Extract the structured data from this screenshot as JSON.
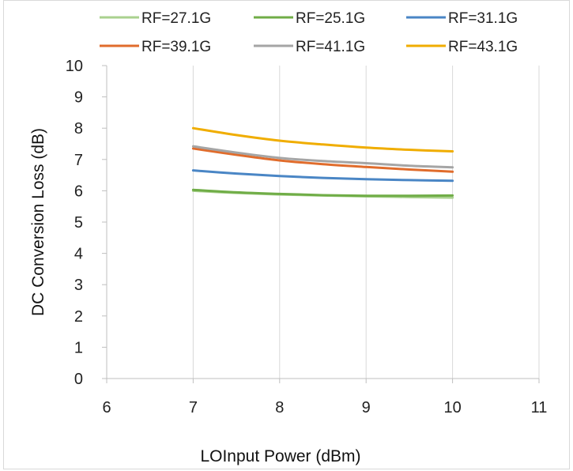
{
  "chart_data": {
    "type": "line",
    "title": "",
    "xlabel": "LOInput Power (dBm)",
    "ylabel": "DC Conversion Loss (dB)",
    "xlim": [
      6,
      11
    ],
    "ylim": [
      0,
      10
    ],
    "xticks": [
      6,
      7,
      8,
      9,
      10,
      11
    ],
    "yticks": [
      0,
      1,
      2,
      3,
      4,
      5,
      6,
      7,
      8,
      9,
      10
    ],
    "grid": "vertical",
    "legend": "top",
    "series": [
      {
        "name": "RF=27.1G",
        "color": "#a9d18e",
        "x": [
          7,
          7.5,
          8,
          8.5,
          9,
          9.5,
          10
        ],
        "y": [
          6.0,
          5.93,
          5.88,
          5.85,
          5.82,
          5.8,
          5.78
        ]
      },
      {
        "name": "RF=25.1G",
        "color": "#70ad47",
        "x": [
          7,
          7.5,
          8,
          8.5,
          9,
          9.5,
          10
        ],
        "y": [
          6.03,
          5.95,
          5.9,
          5.86,
          5.84,
          5.84,
          5.85
        ]
      },
      {
        "name": "RF=31.1G",
        "color": "#4a86c5",
        "x": [
          7,
          7.5,
          8,
          8.5,
          9,
          9.5,
          10
        ],
        "y": [
          6.65,
          6.55,
          6.47,
          6.41,
          6.37,
          6.34,
          6.32
        ]
      },
      {
        "name": "RF=39.1G",
        "color": "#e06c2c",
        "x": [
          7,
          7.5,
          8,
          8.5,
          9,
          9.5,
          10
        ],
        "y": [
          7.35,
          7.15,
          6.97,
          6.85,
          6.76,
          6.68,
          6.61
        ]
      },
      {
        "name": "RF=41.1G",
        "color": "#a5a5a5",
        "x": [
          7,
          7.5,
          8,
          8.5,
          9,
          9.5,
          10
        ],
        "y": [
          7.42,
          7.22,
          7.05,
          6.95,
          6.88,
          6.8,
          6.75
        ]
      },
      {
        "name": "RF=43.1G",
        "color": "#f0ad00",
        "x": [
          7,
          7.5,
          8,
          8.5,
          9,
          9.5,
          10
        ],
        "y": [
          8.0,
          7.78,
          7.6,
          7.48,
          7.38,
          7.31,
          7.26
        ]
      }
    ]
  }
}
